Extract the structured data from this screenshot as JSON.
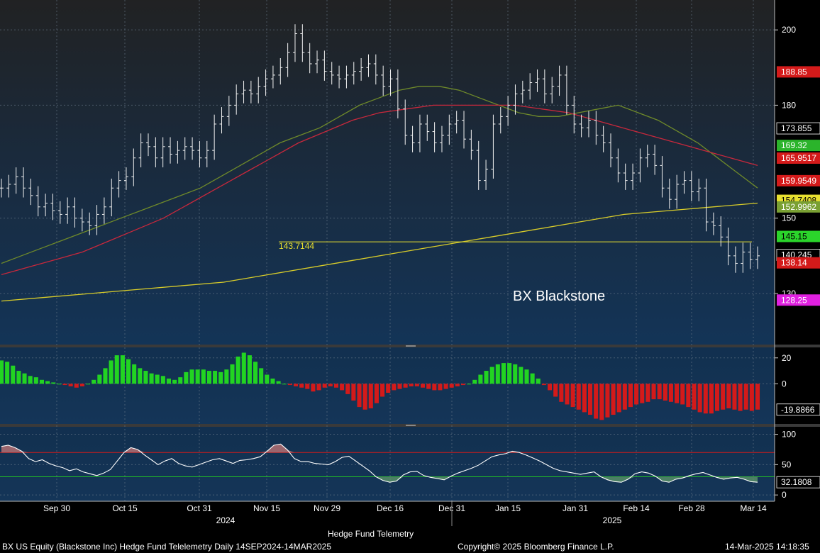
{
  "chart_data": [
    {
      "panel": "price",
      "type": "bar",
      "title": "BX Blackstone",
      "y_ticks": [
        130,
        150,
        180,
        200
      ],
      "ylim": [
        117,
        207
      ],
      "x_ticks": [
        "Sep 30",
        "Oct 15",
        "Oct 31",
        "Nov 15",
        "Nov 29",
        "Dec 16",
        "Dec 31",
        "Jan 15",
        "Jan 31",
        "Feb 14",
        "Feb 28",
        "Mar 14"
      ],
      "years": [
        "2024",
        "2025"
      ],
      "grid": true,
      "price_labels": [
        {
          "text": "188.85",
          "color": "#d41a1a",
          "value": 188.85
        },
        {
          "text": "173.855",
          "color": "#000000",
          "value": 173.855
        },
        {
          "text": "169.32",
          "color": "#2bb42b",
          "value": 169.32
        },
        {
          "text": "165.9517",
          "color": "#d41a1a",
          "value": 165.9517
        },
        {
          "text": "159.9549",
          "color": "#d41a1a",
          "value": 159.9549
        },
        {
          "text": "154.7408",
          "color": "#e8e030",
          "value": 154.7408
        },
        {
          "text": "152.9962",
          "color": "#7aa033",
          "value": 152.9962
        },
        {
          "text": "145.15",
          "color": "#2bd42b",
          "value": 145.15
        },
        {
          "text": "140.245",
          "color": "#000000",
          "value": 140.245
        },
        {
          "text": "138.14",
          "color": "#d41a1a",
          "value": 138.14
        },
        {
          "text": "128.25",
          "color": "#e020e0",
          "value": 128.25
        }
      ],
      "annotation_level": "143.7144",
      "series": [
        {
          "name": "price",
          "values": [
            158,
            159,
            161,
            158,
            156,
            153,
            154,
            152,
            151,
            153,
            150,
            149,
            148,
            151,
            153,
            158,
            160,
            161,
            166,
            170,
            169,
            166,
            169,
            167,
            168,
            169,
            168,
            166,
            168,
            175,
            177,
            180,
            183,
            184,
            183,
            185,
            187,
            188,
            190,
            194,
            199,
            194,
            191,
            192,
            189,
            188,
            187,
            188,
            189,
            190,
            191,
            188,
            185,
            187,
            179,
            172,
            170,
            175,
            173,
            170,
            172,
            175,
            176,
            171,
            168,
            160,
            163,
            175,
            177,
            180,
            183,
            184,
            186,
            187,
            183,
            185,
            188,
            180,
            175,
            174,
            176,
            172,
            170,
            166,
            162,
            160,
            162,
            166,
            167,
            164,
            158,
            155,
            159,
            160,
            157,
            158,
            149,
            148,
            145,
            140,
            138,
            141,
            139,
            140
          ]
        },
        {
          "name": "ma-olive",
          "values": [
            138,
            140,
            142,
            144,
            146,
            148,
            150,
            152,
            154,
            156,
            158,
            161,
            164,
            167,
            170,
            172,
            174,
            177,
            180,
            182,
            184,
            185,
            185,
            184,
            182,
            180,
            178,
            177,
            177,
            178,
            179,
            180,
            178,
            176,
            173,
            170,
            166,
            162,
            158
          ]
        },
        {
          "name": "ma-red",
          "values": [
            135,
            137,
            139,
            141,
            144,
            147,
            150,
            154,
            158,
            162,
            166,
            170,
            173,
            176,
            178,
            179,
            180,
            180,
            180,
            180,
            179,
            178,
            176,
            174,
            172,
            170,
            168,
            166,
            164
          ]
        },
        {
          "name": "ma-yellow",
          "values": [
            128,
            129,
            130,
            131,
            132,
            133,
            135,
            137,
            139,
            141,
            143,
            145,
            147,
            149,
            151,
            152,
            153,
            154
          ]
        }
      ]
    },
    {
      "panel": "momentum",
      "type": "bar",
      "y_ticks": [
        20,
        0
      ],
      "ylim": [
        -30,
        27
      ],
      "last_label": "-19.8866",
      "series": [
        {
          "name": "momentum",
          "values": [
            18,
            17,
            14,
            10,
            8,
            6,
            5,
            3,
            2,
            1,
            0,
            -1,
            -2,
            -3,
            -2,
            0,
            3,
            7,
            12,
            18,
            22,
            22,
            19,
            15,
            12,
            10,
            8,
            7,
            6,
            4,
            3,
            5,
            9,
            11,
            11,
            11,
            10,
            10,
            9,
            11,
            15,
            21,
            24,
            22,
            17,
            12,
            7,
            4,
            2,
            0,
            -1,
            -2,
            -3,
            -4,
            -6,
            -5,
            -3,
            -2,
            -3,
            -5,
            -8,
            -13,
            -18,
            -20,
            -19,
            -15,
            -10,
            -7,
            -5,
            -4,
            -3,
            -2,
            -2,
            -3,
            -4,
            -5,
            -5,
            -4,
            -3,
            -2,
            -1,
            0,
            3,
            7,
            10,
            13,
            15,
            16,
            16,
            15,
            13,
            11,
            8,
            4,
            -1,
            -5,
            -10,
            -14,
            -16,
            -18,
            -20,
            -22,
            -24,
            -27,
            -28,
            -26,
            -24,
            -22,
            -20,
            -18,
            -16,
            -15,
            -14,
            -12,
            -12,
            -13,
            -14,
            -15,
            -16,
            -18,
            -20,
            -22,
            -23,
            -23,
            -21,
            -20,
            -19,
            -20,
            -21,
            -20,
            -21,
            -20
          ]
        }
      ]
    },
    {
      "panel": "oscillator",
      "type": "line",
      "y_ticks": [
        100,
        50,
        0
      ],
      "ylim": [
        -8,
        110
      ],
      "levels": [
        70,
        30
      ],
      "last_label": "32.1808",
      "series": [
        {
          "name": "oscillator",
          "values": [
            80,
            82,
            78,
            72,
            60,
            55,
            58,
            52,
            48,
            45,
            40,
            43,
            38,
            35,
            32,
            36,
            42,
            56,
            70,
            78,
            75,
            66,
            58,
            50,
            56,
            60,
            52,
            48,
            46,
            50,
            54,
            58,
            60,
            56,
            52,
            57,
            58,
            60,
            63,
            72,
            82,
            84,
            74,
            60,
            55,
            55,
            52,
            51,
            50,
            55,
            62,
            64,
            56,
            48,
            40,
            30,
            24,
            21,
            23,
            33,
            38,
            39,
            32,
            29,
            27,
            25,
            31,
            36,
            40,
            44,
            49,
            56,
            63,
            66,
            68,
            72,
            70,
            66,
            61,
            56,
            50,
            44,
            40,
            38,
            36,
            34,
            36,
            38,
            30,
            25,
            22,
            21,
            26,
            35,
            38,
            36,
            31,
            23,
            21,
            26,
            28,
            32,
            35,
            37,
            33,
            29,
            26,
            28,
            29,
            26,
            22,
            21
          ]
        }
      ]
    }
  ],
  "footer": {
    "caption": "Hedge Fund Telemetry",
    "left": "BX US Equity (Blackstone Inc) Hedge Fund Telelemetry  Daily 14SEP2024-14MAR2025",
    "center": "Copyright© 2025 Bloomberg Finance L.P.",
    "right": "14-Mar-2025 14:18:35"
  }
}
